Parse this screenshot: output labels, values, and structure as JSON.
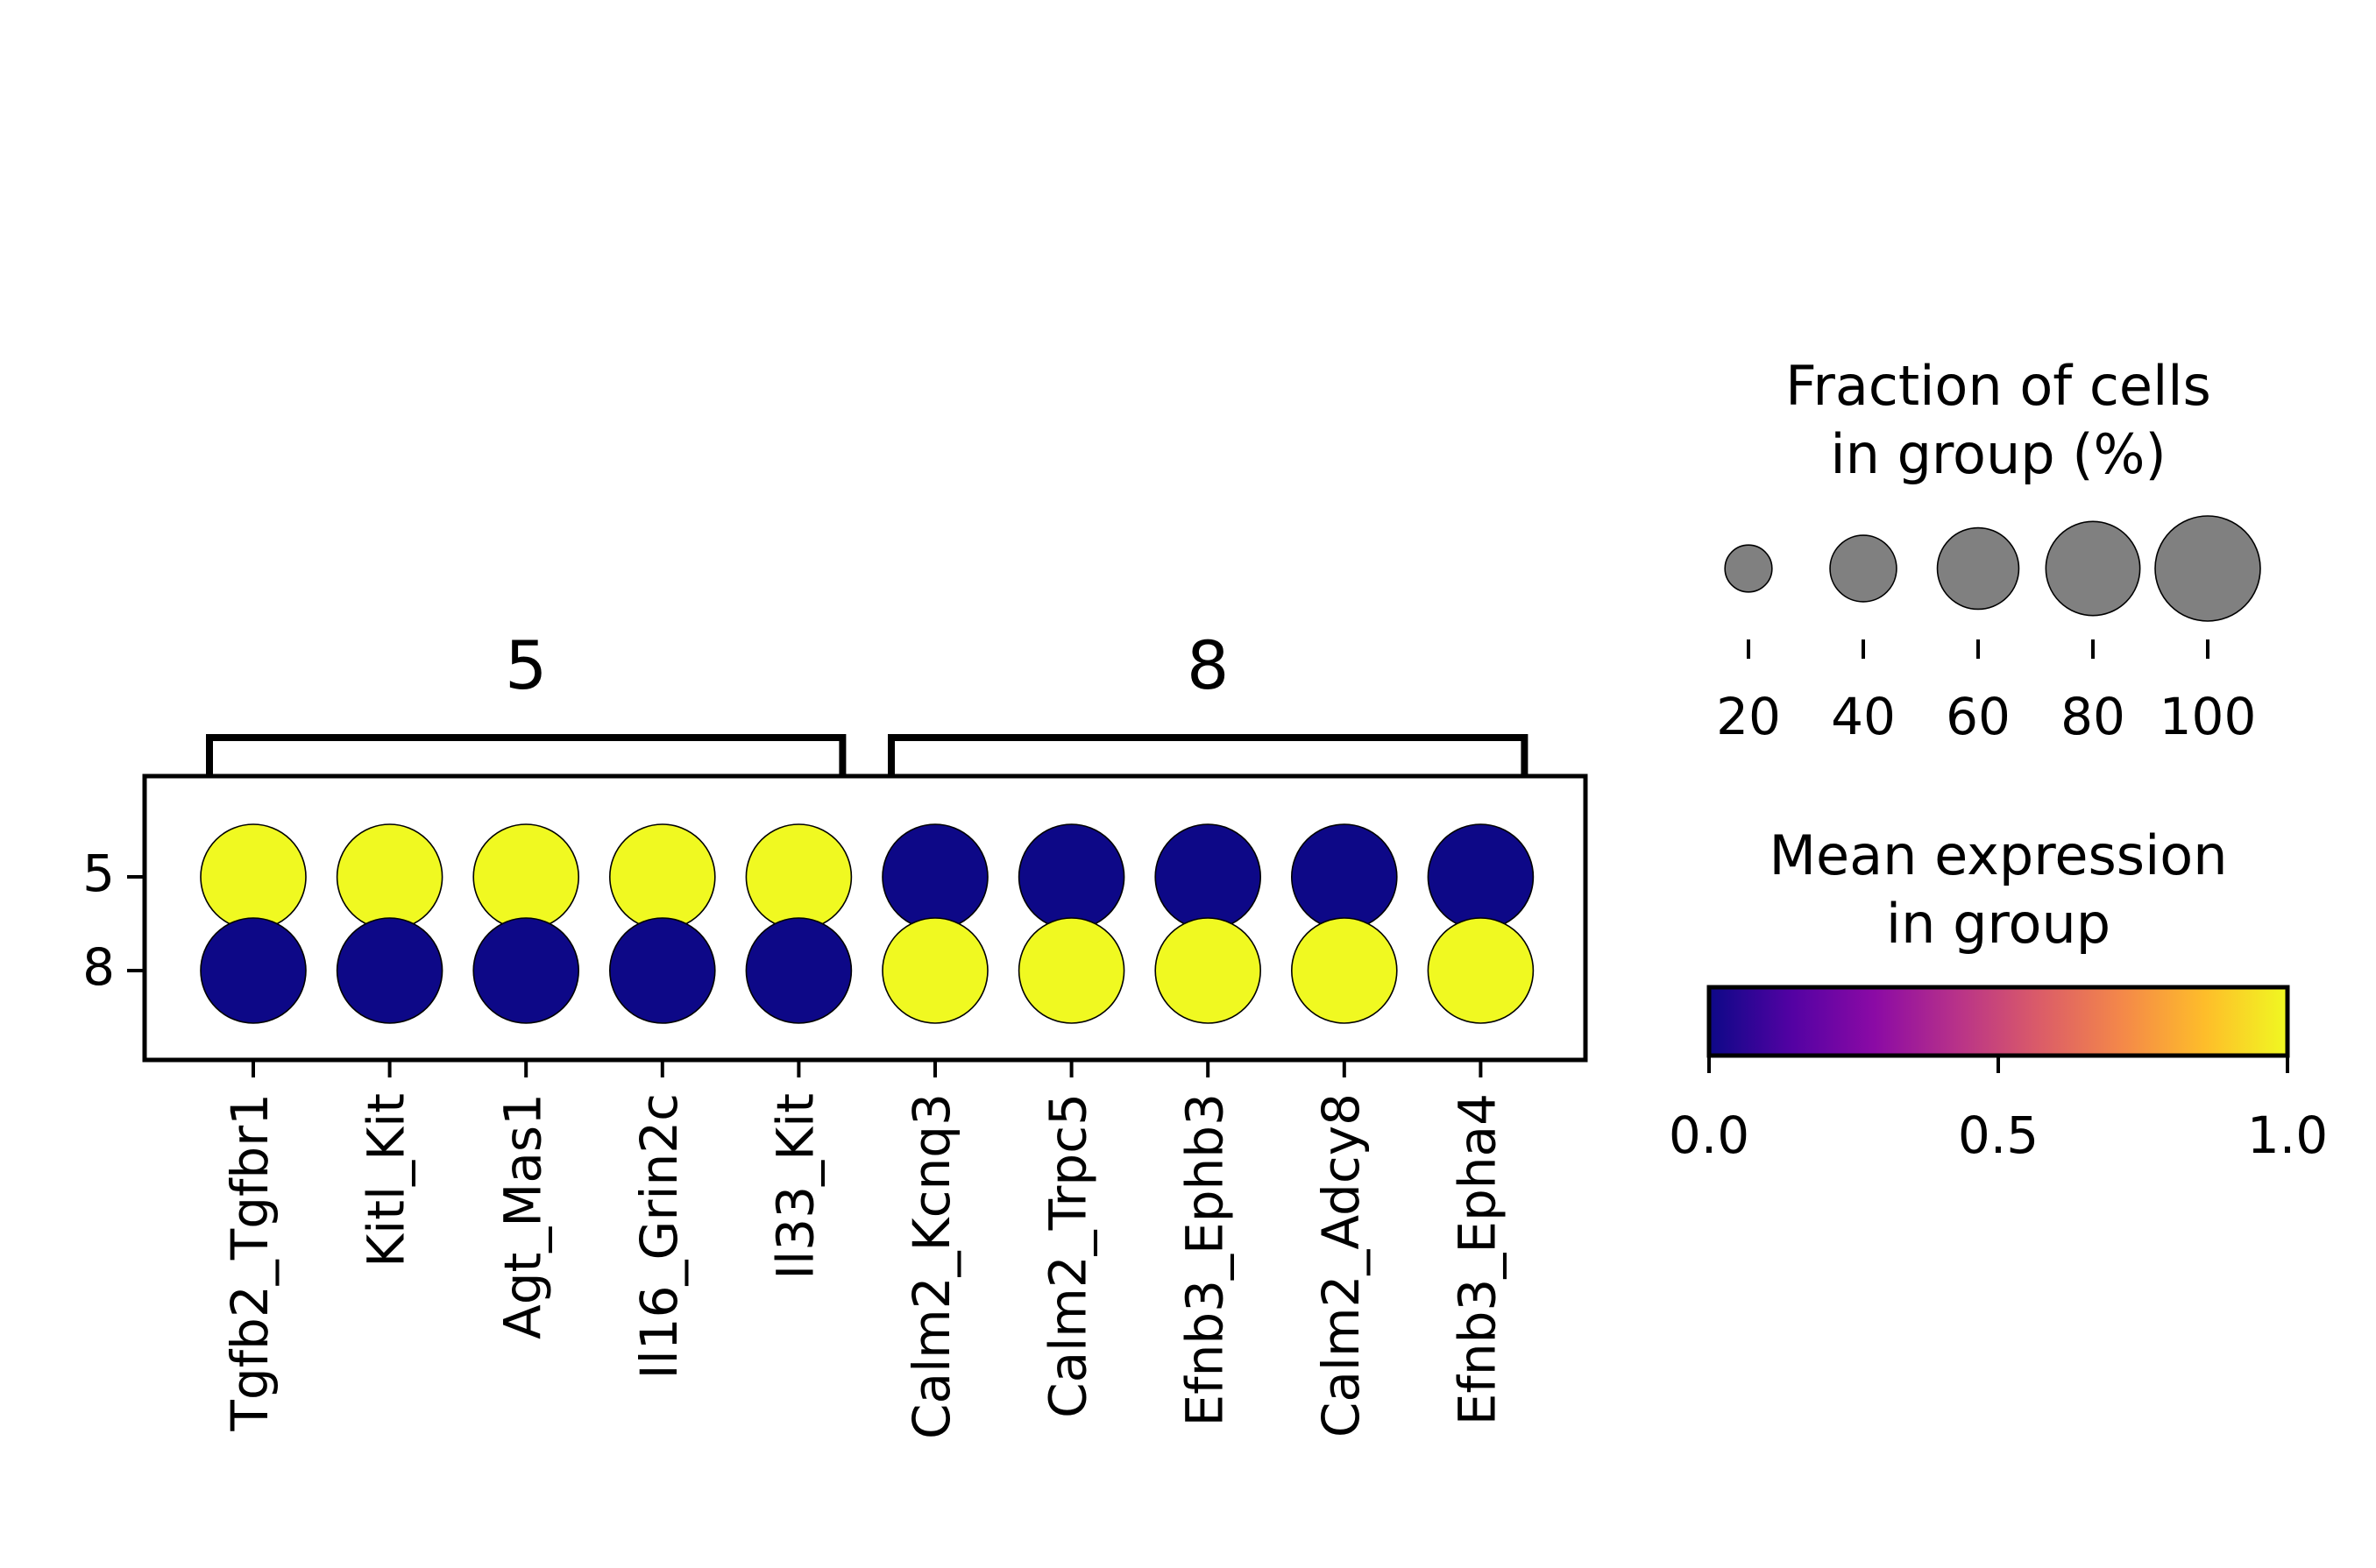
{
  "chart_data": {
    "type": "dotplot",
    "genes": [
      "Tgfb2_Tgfbr1",
      "Kitl_Kit",
      "Agt_Mas1",
      "Il16_Grin2c",
      "Il33_Kit",
      "Calm2_Kcnq3",
      "Calm2_Trpc5",
      "Efnb3_Ephb3",
      "Calm2_Adcy8",
      "Efnb3_Epha4"
    ],
    "groups": [
      "5",
      "8"
    ],
    "var_groups": [
      {
        "label": "5",
        "start": 0,
        "end": 4
      },
      {
        "label": "8",
        "start": 5,
        "end": 9
      }
    ],
    "mean_expression": [
      [
        1.0,
        1.0,
        1.0,
        1.0,
        1.0,
        0.0,
        0.0,
        0.0,
        0.0,
        0.0
      ],
      [
        0.0,
        0.0,
        0.0,
        0.0,
        0.0,
        1.0,
        1.0,
        1.0,
        1.0,
        1.0
      ]
    ],
    "fraction_in_group": [
      [
        100,
        100,
        100,
        100,
        100,
        100,
        100,
        100,
        100,
        100
      ],
      [
        100,
        100,
        100,
        100,
        100,
        100,
        100,
        100,
        100,
        100
      ]
    ],
    "colormap": "plasma",
    "colormap_stops": [
      "#0d0887",
      "#5302a3",
      "#8b0aa5",
      "#b83289",
      "#db5c68",
      "#f48849",
      "#febd2a",
      "#f0f921"
    ],
    "size_legend": {
      "title_lines": [
        "Fraction of cells",
        "in group (%)"
      ],
      "values": [
        20,
        40,
        60,
        80,
        100
      ],
      "labels": [
        "20",
        "40",
        "60",
        "80",
        "100"
      ],
      "dot_color": "#808080"
    },
    "color_legend": {
      "title_lines": [
        "Mean expression",
        "in group"
      ],
      "range": [
        0.0,
        1.0
      ],
      "ticks": [
        0.0,
        0.5,
        1.0
      ],
      "tick_labels": [
        "0.0",
        "0.5",
        "1.0"
      ]
    }
  }
}
